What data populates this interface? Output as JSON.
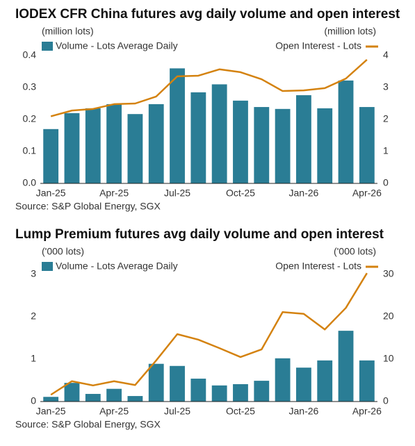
{
  "chart_data": [
    {
      "type": "bar",
      "title": "IODEX CFR China futures avg daily volume and open interest",
      "y_label": "(million lots)",
      "y2_label": "(million lots)",
      "source": "Source: S&P Global Energy, SGX",
      "categories": [
        "Jan-25",
        null,
        null,
        "Apr-25",
        null,
        null,
        "Jul-25",
        null,
        null,
        "Oct-25",
        null,
        null,
        "Jan-26",
        null,
        null,
        "Apr-26"
      ],
      "series": [
        {
          "name": "Volume - Lots Average Daily",
          "type": "bar",
          "color": "#2a7d95",
          "values": [
            0.17,
            0.22,
            0.235,
            0.248,
            0.217,
            0.248,
            0.36,
            0.285,
            0.31,
            0.259,
            0.239,
            0.233,
            0.276,
            0.235,
            0.322,
            0.239
          ]
        },
        {
          "name": "Open Interest - Lots",
          "type": "line",
          "axis": "y2",
          "color": "#d4820f",
          "values": [
            2.1,
            2.28,
            2.33,
            2.48,
            2.5,
            2.72,
            3.35,
            3.37,
            3.57,
            3.48,
            3.26,
            2.89,
            2.91,
            2.98,
            3.28,
            3.87
          ]
        }
      ],
      "ylim": [
        0,
        0.4
      ],
      "yticks": [
        {
          "value": 0,
          "label": "0.0"
        },
        0.1,
        0.2,
        0.3,
        0.4
      ],
      "y2lim": [
        0,
        4
      ],
      "y2ticks": [
        0,
        1,
        2,
        3,
        4
      ]
    },
    {
      "type": "bar",
      "title": "Lump Premium futures avg daily volume and open interest",
      "y_label": "('000 lots)",
      "y2_label": "('000 lots)",
      "source": "Source: S&P Global Energy, SGX",
      "categories": [
        "Jan-25",
        null,
        null,
        "Apr-25",
        null,
        null,
        "Jul-25",
        null,
        null,
        "Oct-25",
        null,
        null,
        "Jan-26",
        null,
        null,
        "Apr-26"
      ],
      "series": [
        {
          "name": "Volume - Lots Average Daily",
          "type": "bar",
          "color": "#2a7d95",
          "values": [
            0.11,
            0.44,
            0.18,
            0.3,
            0.13,
            0.89,
            0.84,
            0.54,
            0.38,
            0.41,
            0.49,
            1.02,
            0.8,
            0.97,
            1.67,
            0.97
          ]
        },
        {
          "name": "Open Interest - Lots",
          "type": "line",
          "axis": "y2",
          "color": "#d4820f",
          "values": [
            1.6,
            4.8,
            3.8,
            4.8,
            3.9,
            9.7,
            15.9,
            14.6,
            12.6,
            10.5,
            12.3,
            21.1,
            20.7,
            17.0,
            22.1,
            30.3
          ]
        }
      ],
      "ylim": [
        0,
        3
      ],
      "yticks": [
        0,
        1,
        2,
        3
      ],
      "y2lim": [
        0,
        30
      ],
      "y2ticks": [
        0,
        10,
        20,
        30
      ]
    }
  ]
}
